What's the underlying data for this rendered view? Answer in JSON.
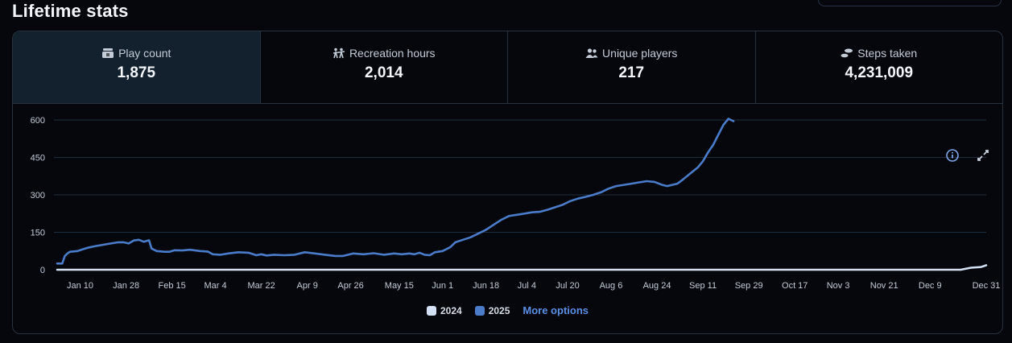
{
  "page": {
    "title": "Lifetime stats"
  },
  "stats": [
    {
      "icon": "ticket-icon",
      "label": "Play count",
      "value": "1,875",
      "active": true
    },
    {
      "icon": "recreation-icon",
      "label": "Recreation hours",
      "value": "2,014",
      "active": false
    },
    {
      "icon": "users-icon",
      "label": "Unique players",
      "value": "217",
      "active": false
    },
    {
      "icon": "footsteps-icon",
      "label": "Steps taken",
      "value": "4,231,009",
      "active": false
    }
  ],
  "toolbar": {
    "info_icon": "info-icon",
    "expand_icon": "expand-icon"
  },
  "legend": {
    "more_options": "More options"
  },
  "colors": {
    "series_2024": "#d4e1f5",
    "series_2025": "#4a7cc9",
    "grid": "#1f2c3d",
    "active_stat_bg": "#13202e"
  },
  "chart_data": {
    "type": "line",
    "ylim": [
      0,
      600
    ],
    "yticks": [
      0,
      150,
      300,
      450,
      600
    ],
    "ytick_labels": [
      "0",
      "150",
      "300",
      "450",
      "600"
    ],
    "xlim": [
      "2025-01-01",
      "2025-12-31"
    ],
    "xtick_labels": [
      "Jan 10",
      "Jan 28",
      "Feb 15",
      "Mar 4",
      "Mar 22",
      "Apr 9",
      "Apr 26",
      "May 15",
      "Jun 1",
      "Jun 18",
      "Jul 4",
      "Jul 20",
      "Aug 6",
      "Aug 24",
      "Sep 11",
      "Sep 29",
      "Oct 17",
      "Nov 3",
      "Nov 21",
      "Dec 9",
      "Dec 31"
    ],
    "xtick_dates": [
      "2025-01-10",
      "2025-01-28",
      "2025-02-15",
      "2025-03-04",
      "2025-03-22",
      "2025-04-09",
      "2025-04-26",
      "2025-05-15",
      "2025-06-01",
      "2025-06-18",
      "2025-07-04",
      "2025-07-20",
      "2025-08-06",
      "2025-08-24",
      "2025-09-11",
      "2025-09-29",
      "2025-10-17",
      "2025-11-03",
      "2025-11-21",
      "2025-12-09",
      "2025-12-31"
    ],
    "grid": true,
    "legend_position": "bottom",
    "series": [
      {
        "name": "2024",
        "points": [
          [
            "2025-01-01",
            0
          ],
          [
            "2025-12-21",
            0
          ],
          [
            "2025-12-25",
            8
          ],
          [
            "2025-12-29",
            11
          ],
          [
            "2025-12-31",
            18
          ]
        ]
      },
      {
        "name": "2025",
        "points": [
          [
            "2025-01-01",
            25
          ],
          [
            "2025-01-03",
            25
          ],
          [
            "2025-01-04",
            55
          ],
          [
            "2025-01-05",
            65
          ],
          [
            "2025-01-06",
            72
          ],
          [
            "2025-01-09",
            75
          ],
          [
            "2025-01-11",
            82
          ],
          [
            "2025-01-13",
            88
          ],
          [
            "2025-01-16",
            95
          ],
          [
            "2025-01-19",
            100
          ],
          [
            "2025-01-22",
            105
          ],
          [
            "2025-01-25",
            110
          ],
          [
            "2025-01-27",
            110
          ],
          [
            "2025-01-29",
            105
          ],
          [
            "2025-01-31",
            117
          ],
          [
            "2025-02-02",
            120
          ],
          [
            "2025-02-04",
            112
          ],
          [
            "2025-02-06",
            118
          ],
          [
            "2025-02-07",
            85
          ],
          [
            "2025-02-09",
            75
          ],
          [
            "2025-02-12",
            72
          ],
          [
            "2025-02-14",
            72
          ],
          [
            "2025-02-16",
            78
          ],
          [
            "2025-02-19",
            77
          ],
          [
            "2025-02-22",
            80
          ],
          [
            "2025-02-26",
            75
          ],
          [
            "2025-03-01",
            73
          ],
          [
            "2025-03-03",
            62
          ],
          [
            "2025-03-06",
            60
          ],
          [
            "2025-03-09",
            65
          ],
          [
            "2025-03-13",
            70
          ],
          [
            "2025-03-17",
            68
          ],
          [
            "2025-03-20",
            58
          ],
          [
            "2025-03-22",
            62
          ],
          [
            "2025-03-24",
            57
          ],
          [
            "2025-03-27",
            60
          ],
          [
            "2025-03-31",
            58
          ],
          [
            "2025-04-04",
            60
          ],
          [
            "2025-04-08",
            70
          ],
          [
            "2025-04-12",
            65
          ],
          [
            "2025-04-16",
            60
          ],
          [
            "2025-04-20",
            55
          ],
          [
            "2025-04-23",
            55
          ],
          [
            "2025-04-27",
            65
          ],
          [
            "2025-05-01",
            62
          ],
          [
            "2025-05-05",
            66
          ],
          [
            "2025-05-09",
            60
          ],
          [
            "2025-05-13",
            65
          ],
          [
            "2025-05-16",
            62
          ],
          [
            "2025-05-19",
            65
          ],
          [
            "2025-05-21",
            62
          ],
          [
            "2025-05-23",
            68
          ],
          [
            "2025-05-25",
            60
          ],
          [
            "2025-05-27",
            58
          ],
          [
            "2025-05-29",
            70
          ],
          [
            "2025-06-01",
            75
          ],
          [
            "2025-06-04",
            90
          ],
          [
            "2025-06-06",
            110
          ],
          [
            "2025-06-09",
            120
          ],
          [
            "2025-06-12",
            130
          ],
          [
            "2025-06-15",
            145
          ],
          [
            "2025-06-18",
            160
          ],
          [
            "2025-06-21",
            180
          ],
          [
            "2025-06-24",
            200
          ],
          [
            "2025-06-27",
            215
          ],
          [
            "2025-06-30",
            220
          ],
          [
            "2025-07-03",
            225
          ],
          [
            "2025-07-06",
            230
          ],
          [
            "2025-07-09",
            232
          ],
          [
            "2025-07-12",
            240
          ],
          [
            "2025-07-15",
            250
          ],
          [
            "2025-07-18",
            260
          ],
          [
            "2025-07-21",
            275
          ],
          [
            "2025-07-24",
            285
          ],
          [
            "2025-07-27",
            292
          ],
          [
            "2025-07-30",
            300
          ],
          [
            "2025-08-02",
            310
          ],
          [
            "2025-08-05",
            325
          ],
          [
            "2025-08-08",
            335
          ],
          [
            "2025-08-11",
            340
          ],
          [
            "2025-08-14",
            345
          ],
          [
            "2025-08-17",
            350
          ],
          [
            "2025-08-20",
            355
          ],
          [
            "2025-08-23",
            352
          ],
          [
            "2025-08-26",
            340
          ],
          [
            "2025-08-28",
            335
          ],
          [
            "2025-08-30",
            340
          ],
          [
            "2025-09-01",
            345
          ],
          [
            "2025-09-03",
            360
          ],
          [
            "2025-09-06",
            385
          ],
          [
            "2025-09-09",
            410
          ],
          [
            "2025-09-11",
            435
          ],
          [
            "2025-09-13",
            470
          ],
          [
            "2025-09-15",
            500
          ],
          [
            "2025-09-17",
            540
          ],
          [
            "2025-09-19",
            580
          ],
          [
            "2025-09-21",
            605
          ],
          [
            "2025-09-23",
            595
          ]
        ]
      }
    ]
  }
}
